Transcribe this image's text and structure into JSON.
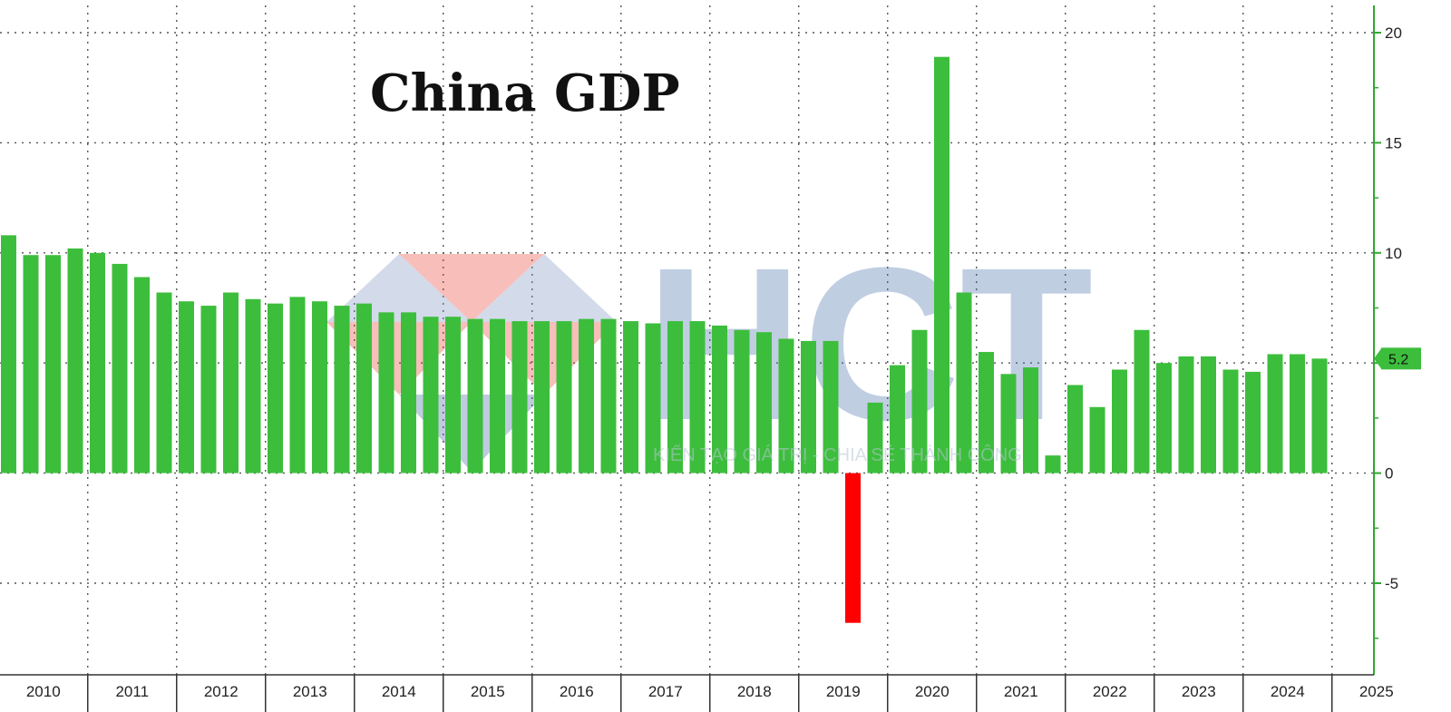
{
  "chart_data": {
    "type": "bar",
    "title": "China GDP",
    "ylim": [
      -9,
      21
    ],
    "y_ticks": [
      -5,
      0,
      5,
      10,
      15,
      20
    ],
    "y_tick_labels": [
      "-5",
      "0",
      "5",
      "10",
      "15",
      "20"
    ],
    "x_axis_years": [
      "2010",
      "2011",
      "2012",
      "2013",
      "2014",
      "2015",
      "2016",
      "2017",
      "2018",
      "2019",
      "2020",
      "2021",
      "2022",
      "2023",
      "2024",
      "2025"
    ],
    "last_value_label": "5.2",
    "grid": true,
    "colors": {
      "positive": "#3cbe3c",
      "negative": "#ff0000",
      "axis": "#2fa82f",
      "grid": "#555555"
    },
    "values": [
      10.8,
      9.9,
      9.9,
      10.2,
      10.0,
      9.5,
      8.9,
      8.2,
      7.8,
      7.6,
      8.2,
      7.9,
      7.7,
      8.0,
      7.8,
      7.6,
      7.7,
      7.3,
      7.3,
      7.1,
      7.1,
      7.0,
      7.0,
      6.9,
      6.9,
      6.9,
      7.0,
      7.0,
      6.9,
      6.8,
      6.9,
      6.9,
      6.7,
      6.5,
      6.4,
      6.1,
      6.0,
      6.0,
      -6.8,
      3.2,
      4.9,
      6.5,
      18.9,
      8.2,
      5.5,
      4.5,
      4.8,
      0.8,
      4.0,
      3.0,
      4.7,
      6.5,
      5.0,
      5.3,
      5.3,
      4.7,
      4.6,
      5.4,
      5.4,
      5.2
    ]
  },
  "watermark": {
    "letters": "HCT",
    "tagline": "KIẾN TẠO GIÁ TRỊ - CHIA SẺ THÀNH CÔNG"
  }
}
